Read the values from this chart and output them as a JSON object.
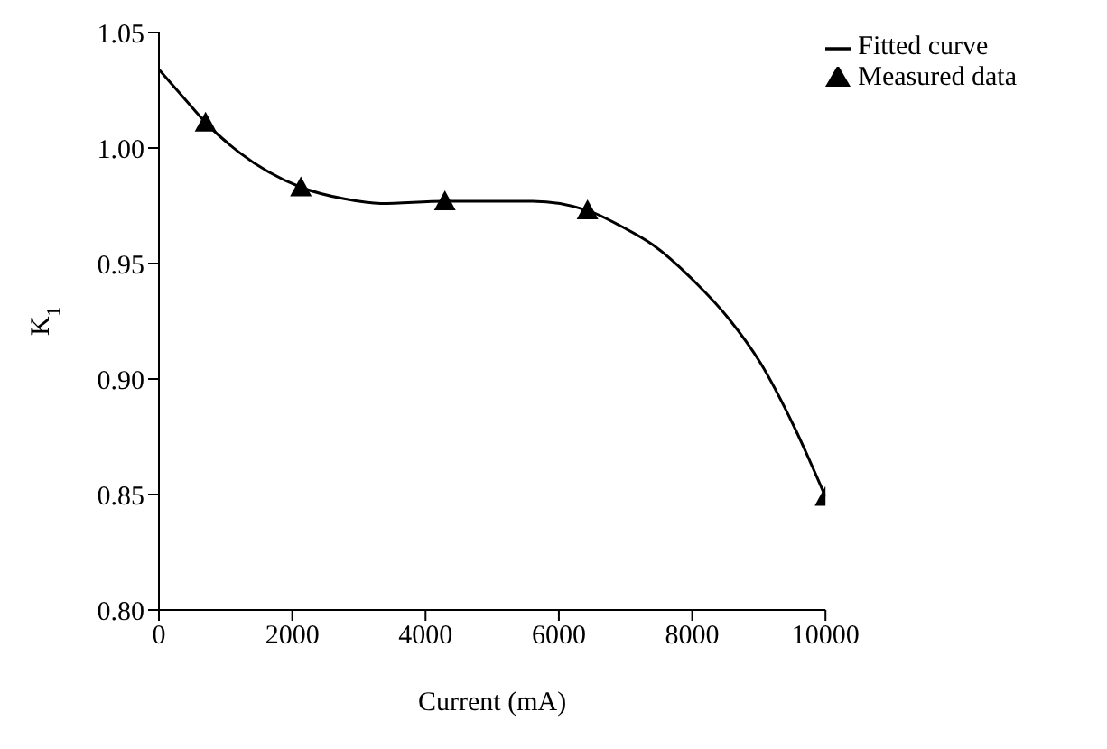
{
  "chart_data": {
    "type": "line",
    "xlabel": "Current (mA)",
    "ylabel": "K$_{1}$",
    "xlim": [
      0,
      10000
    ],
    "xticks": [
      0,
      2000,
      4000,
      6000,
      8000,
      10000
    ],
    "ylim": [
      0.8,
      1.05
    ],
    "yticks": [
      {
        "value": 0.8,
        "label": "0.80"
      },
      {
        "value": 0.85,
        "label": "0.85"
      },
      {
        "value": 0.9,
        "label": "0.90"
      },
      {
        "value": 0.95,
        "label": "0.95"
      },
      {
        "value": 1.0,
        "label": "1.00"
      },
      {
        "value": 1.05,
        "label": "1.05"
      }
    ],
    "grid": false,
    "legend": "top right",
    "series": [
      {
        "name": "Fitted curve",
        "color": "#000000",
        "marker": "none",
        "line_style": "solid",
        "x": [
          0,
          424,
          700,
          1209,
          2130,
          2780,
          3330,
          4290,
          5607,
          6430,
          6942,
          7414,
          8043,
          8553,
          9023,
          9535,
          10000
        ],
        "values": [
          1.034,
          1.02,
          1.011,
          0.998,
          0.983,
          0.978,
          0.976,
          0.977,
          0.977,
          0.973,
          0.966,
          0.958,
          0.942,
          0.926,
          0.907,
          0.879,
          0.849
        ]
      },
      {
        "name": "Measured data",
        "type": "scatter",
        "color": "#000000",
        "marker": "triangle",
        "x": [
          700,
          2130,
          4290,
          6430,
          10000
        ],
        "values": [
          1.011,
          0.983,
          0.977,
          0.973,
          0.849
        ]
      }
    ]
  }
}
